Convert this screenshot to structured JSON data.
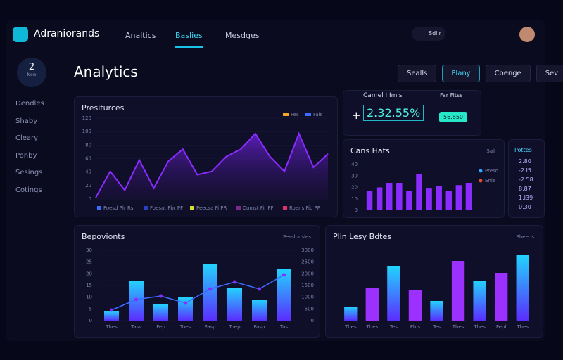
{
  "header": {
    "brand": "Adraniorands",
    "nav": [
      "Analtics",
      "Baslies",
      "Mesdges"
    ],
    "user": "Sdlir"
  },
  "sidebar": {
    "badge": "2",
    "badge_caption": "Now",
    "items": [
      "Dendles",
      "Shaby",
      "Cleary",
      "Ponby",
      "Sesings",
      "Cotings"
    ]
  },
  "page": {
    "title": "Analytics",
    "buttons": [
      "Sealls",
      "Plany",
      "Coenge",
      "Sevl"
    ]
  },
  "trend": {
    "type": "area",
    "title": "Presiturces",
    "legend_top": [
      "Fes",
      "Fals"
    ],
    "legend_top_colors": [
      "#f5a623",
      "#3b6cff"
    ],
    "values": [
      2,
      41,
      13,
      58,
      16,
      56,
      74,
      36,
      41,
      63,
      74,
      97,
      63,
      41,
      97,
      47,
      67
    ],
    "ylim": [
      0,
      120
    ],
    "yticks": [
      0,
      20,
      40,
      60,
      80,
      100,
      120
    ],
    "color": "#8a2cff",
    "legend": [
      "Foesd Plr Rs",
      "Foesat Fbr PF",
      "Peecsa Fi PR",
      "Cumst Fir PF",
      "Roens Fib PP"
    ],
    "legend_colors": [
      "#3b6cff",
      "#2b3fbf",
      "#d6e02a",
      "#7a2a8a",
      "#e0306a"
    ]
  },
  "gain": {
    "title": "Camel I Imls",
    "sign": "+",
    "value": "2.32.55%",
    "side_title": "Far Fitss",
    "side_value": "56.850"
  },
  "hits": {
    "type": "bar",
    "title": "Cans Hats",
    "corner": "Sail",
    "values": [
      17,
      20,
      24,
      24,
      17,
      32,
      19,
      21,
      17,
      22,
      24
    ],
    "ylim": [
      0,
      40
    ],
    "yticks": [
      0,
      10,
      20,
      30,
      40
    ],
    "color": "#8a2cff",
    "legend": [
      "Presd",
      "Enie"
    ],
    "legend_colors": [
      "#2aa8ff",
      "#e0502a"
    ]
  },
  "points": {
    "title": "Pottes",
    "values": [
      "2.80",
      "-2.I5",
      "-2.58",
      "8.87",
      "1.I39",
      "0.30"
    ]
  },
  "behaviour": {
    "type": "combo",
    "title": "Bepovionts",
    "corner": "Pesslunsles",
    "categories": [
      "Thes",
      "Tass",
      "Fep",
      "Toes",
      "Pasp",
      "Toep",
      "Fasp",
      "Tas"
    ],
    "bars": {
      "values": [
        4,
        17,
        7,
        10,
        24,
        14,
        9,
        22
      ]
    },
    "line": {
      "values": [
        450,
        900,
        1050,
        750,
        1350,
        1650,
        1350,
        1950
      ],
      "axis": "y2",
      "color": "#3a6cff"
    },
    "ylim": [
      0,
      30
    ],
    "yticks": [
      0,
      5,
      10,
      15,
      20,
      25,
      30
    ],
    "y2lim": [
      0,
      3000
    ],
    "y2ticks": [
      0,
      500,
      1000,
      1500,
      2000,
      2500,
      3000
    ]
  },
  "plain": {
    "type": "bar",
    "title": "Plin Lesy Bdtes",
    "corner": "Pheeds",
    "categories": [
      "Thes",
      "Thes",
      "Tes",
      "Fhis",
      "Tes",
      "Thes",
      "Thes",
      "Fepl",
      "Thes"
    ],
    "values": [
      20,
      47,
      77,
      43,
      28,
      85,
      57,
      68,
      93
    ],
    "ylim": [
      0,
      100
    ]
  }
}
